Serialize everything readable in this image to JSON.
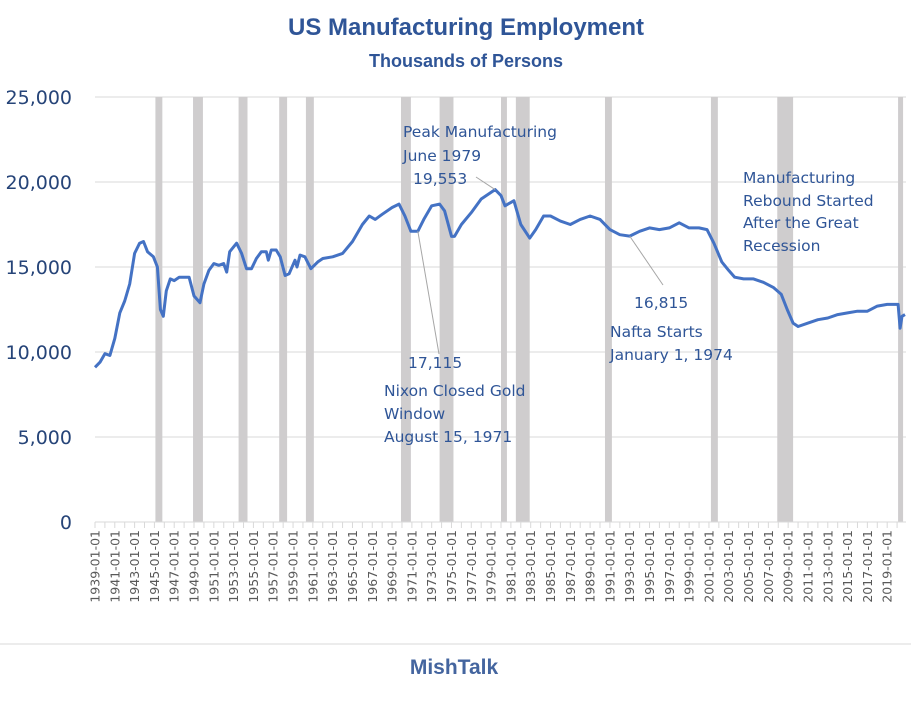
{
  "chart_data": {
    "type": "line",
    "title": "US Manufacturing Employment",
    "subtitle": "Thousands of Persons",
    "xlabel": "",
    "ylabel": "",
    "ylim": [
      0,
      25000
    ],
    "yticks": [
      0,
      5000,
      10000,
      15000,
      20000,
      25000
    ],
    "ytick_labels": [
      "0",
      "5,000",
      "10,000",
      "15,000",
      "20,000",
      "25,000"
    ],
    "xlim": [
      1939.0,
      2020.9
    ],
    "xtick_labels": [
      "1939-01-01",
      "1941-01-01",
      "1943-01-01",
      "1945-01-01",
      "1947-01-01",
      "1949-01-01",
      "1951-01-01",
      "1953-01-01",
      "1955-01-01",
      "1957-01-01",
      "1959-01-01",
      "1961-01-01",
      "1963-01-01",
      "1965-01-01",
      "1967-01-01",
      "1969-01-01",
      "1971-01-01",
      "1973-01-01",
      "1975-01-01",
      "1977-01-01",
      "1979-01-01",
      "1981-01-01",
      "1983-01-01",
      "1985-01-01",
      "1987-01-01",
      "1989-01-01",
      "1991-01-01",
      "1993-01-01",
      "1995-01-01",
      "1997-01-01",
      "1999-01-01",
      "2001-01-01",
      "2003-01-01",
      "2005-01-01",
      "2007-01-01",
      "2009-01-01",
      "2011-01-01",
      "2013-01-01",
      "2015-01-01",
      "2017-01-01",
      "2019-01-01"
    ],
    "grid": true,
    "series": [
      {
        "name": "Manufacturing Employment",
        "color": "#4472c4",
        "x": [
          1939.0,
          1939.5,
          1940.0,
          1940.5,
          1941.0,
          1941.5,
          1942.0,
          1942.5,
          1943.0,
          1943.5,
          1943.9,
          1944.3,
          1944.9,
          1945.3,
          1945.6,
          1945.9,
          1946.2,
          1946.6,
          1947.0,
          1947.5,
          1948.0,
          1948.5,
          1949.0,
          1949.6,
          1950.0,
          1950.5,
          1951.0,
          1951.5,
          1952.0,
          1952.3,
          1952.6,
          1953.3,
          1953.8,
          1954.3,
          1954.8,
          1955.3,
          1955.8,
          1956.3,
          1956.5,
          1956.8,
          1957.3,
          1957.7,
          1958.2,
          1958.6,
          1959.2,
          1959.4,
          1959.7,
          1960.2,
          1960.8,
          1961.5,
          1962.0,
          1963.0,
          1964.0,
          1965.0,
          1966.0,
          1966.7,
          1967.3,
          1968.0,
          1969.0,
          1969.7,
          1970.3,
          1970.9,
          1971.6,
          1972.2,
          1973.0,
          1973.8,
          1974.3,
          1975.0,
          1975.3,
          1976.0,
          1977.0,
          1978.0,
          1979.4,
          1980.0,
          1980.4,
          1981.0,
          1981.3,
          1982.0,
          1982.9,
          1983.5,
          1984.3,
          1985.0,
          1986.0,
          1987.0,
          1988.0,
          1989.0,
          1990.0,
          1991.0,
          1992.0,
          1993.0,
          1994.0,
          1995.0,
          1996.0,
          1997.0,
          1998.0,
          1999.0,
          2000.0,
          2000.8,
          2001.5,
          2002.3,
          2003.0,
          2003.6,
          2004.5,
          2005.5,
          2006.5,
          2007.5,
          2008.3,
          2008.9,
          2009.5,
          2010.0,
          2011.0,
          2012.0,
          2013.0,
          2014.0,
          2015.0,
          2016.0,
          2017.0,
          2018.0,
          2019.0,
          2020.1,
          2020.3,
          2020.5,
          2020.8
        ],
        "values": [
          9100,
          9400,
          9900,
          9800,
          10800,
          12300,
          13000,
          14000,
          15800,
          16400,
          16500,
          15900,
          15600,
          15000,
          12500,
          12100,
          13600,
          14300,
          14200,
          14400,
          14400,
          14400,
          13300,
          12900,
          14000,
          14800,
          15200,
          15100,
          15200,
          14700,
          15900,
          16400,
          15800,
          14900,
          14900,
          15500,
          15900,
          15900,
          15400,
          16000,
          16000,
          15600,
          14500,
          14600,
          15400,
          15000,
          15700,
          15600,
          14900,
          15300,
          15500,
          15600,
          15800,
          16500,
          17500,
          18000,
          17800,
          18100,
          18500,
          18700,
          18000,
          17100,
          17100,
          17800,
          18600,
          18700,
          18300,
          16800,
          16800,
          17500,
          18200,
          19000,
          19553,
          19200,
          18600,
          18800,
          18900,
          17500,
          16700,
          17200,
          18000,
          18000,
          17700,
          17500,
          17800,
          18000,
          17800,
          17200,
          16900,
          16815,
          17100,
          17300,
          17200,
          17300,
          17600,
          17300,
          17300,
          17200,
          16400,
          15300,
          14800,
          14400,
          14300,
          14300,
          14100,
          13800,
          13400,
          12500,
          11700,
          11500,
          11700,
          11900,
          12000,
          12200,
          12300,
          12400,
          12400,
          12700,
          12800,
          12800,
          11400,
          12100,
          12200
        ]
      }
    ],
    "recessions": [
      [
        1945.1,
        1945.8
      ],
      [
        1948.9,
        1949.9
      ],
      [
        1953.5,
        1954.4
      ],
      [
        1957.6,
        1958.4
      ],
      [
        1960.3,
        1961.1
      ],
      [
        1969.9,
        1970.9
      ],
      [
        1973.8,
        1975.2
      ],
      [
        1980.0,
        1980.6
      ],
      [
        1981.5,
        1982.9
      ],
      [
        1990.5,
        1991.2
      ],
      [
        2001.2,
        2001.9
      ],
      [
        2007.9,
        2009.5
      ],
      [
        2020.1,
        2020.3
      ]
    ],
    "recession_color": "#cfcdce",
    "annotations": {
      "peak": {
        "lines": [
          "Peak Manufacturing",
          "June 1979"
        ],
        "value": "19,553",
        "x": 1979.4,
        "y": 19553
      },
      "nixon": {
        "lines": [
          "Nixon Closed Gold",
          "Window",
          "August 15, 1971"
        ],
        "value": "17,115",
        "x": 1971.6,
        "y": 17115
      },
      "nafta": {
        "lines": [
          "Nafta Starts",
          "January 1, 1974"
        ],
        "value": "16,815",
        "x": 1993.0,
        "y": 16815
      },
      "rebound": {
        "lines": [
          "Manufacturing",
          "Rebound Started",
          "After the Great",
          "Recession"
        ]
      }
    }
  },
  "footer": {
    "brand": "MishTalk"
  }
}
